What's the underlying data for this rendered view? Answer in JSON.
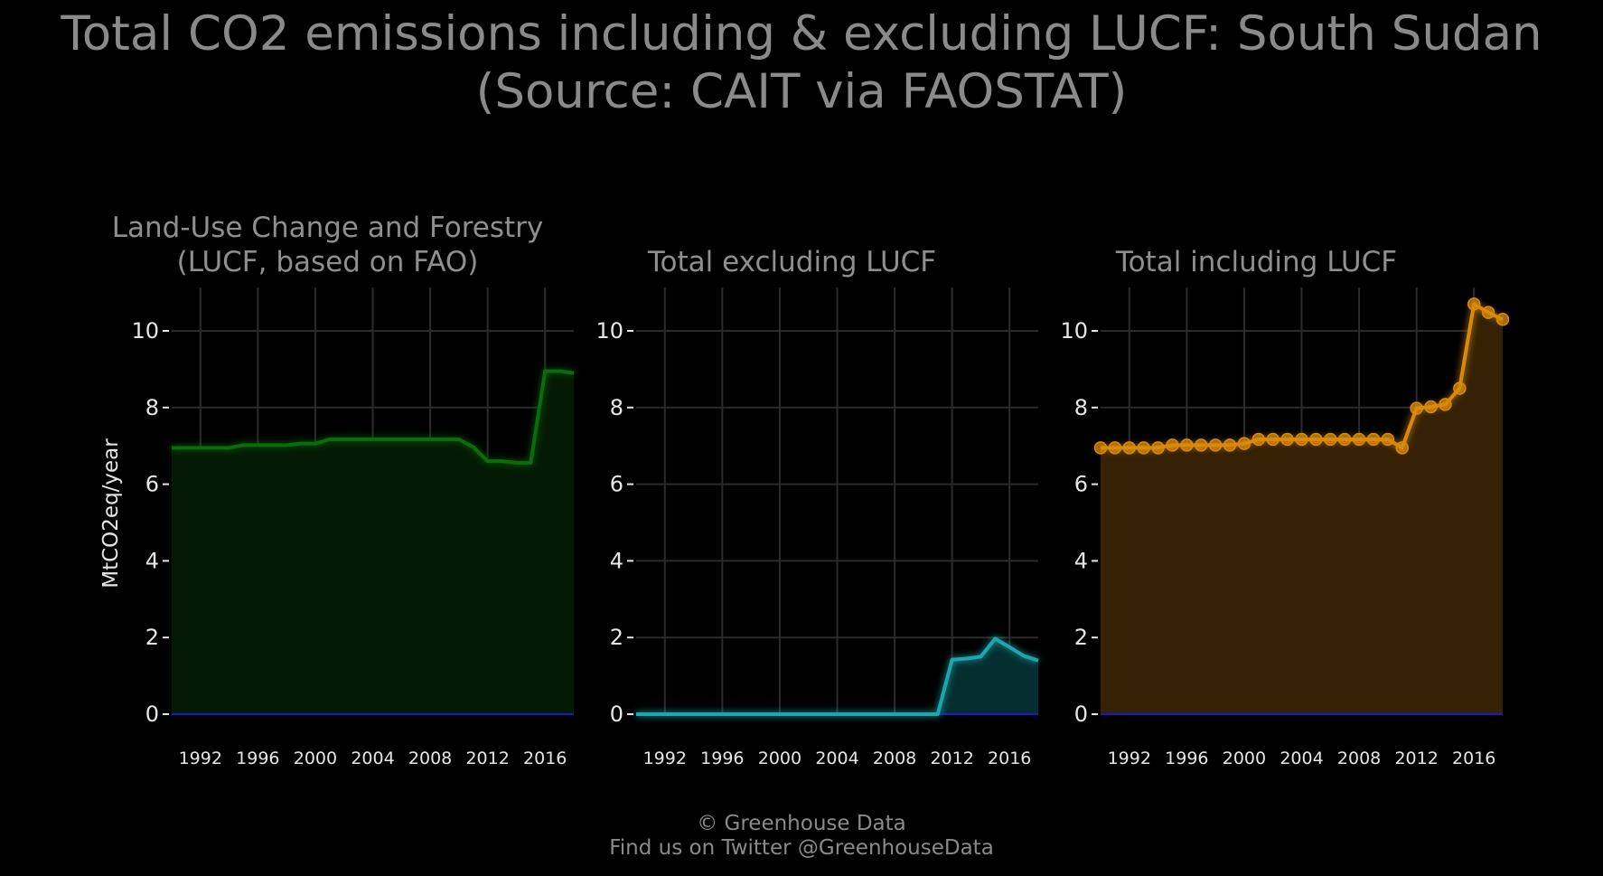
{
  "title": {
    "line1": "Total CO2 emissions including & excluding LUCF: South Sudan",
    "line2": "(Source: CAIT via FAOSTAT)"
  },
  "credits": {
    "line1": "© Greenhouse Data",
    "line2": "Find us on Twitter @GreenhouseData"
  },
  "chart_data": [
    {
      "type": "area",
      "title": [
        "Land-Use Change and Forestry",
        "(LUCF, based on FAO)"
      ],
      "ylabel": "MtCO2eq/year",
      "xlim": [
        1990,
        2018
      ],
      "ylim": [
        0,
        10
      ],
      "x_ticks": [
        "1992",
        "1996",
        "2000",
        "2004",
        "2008",
        "2012",
        "2016"
      ],
      "y_ticks": [
        "0",
        "2",
        "4",
        "6",
        "8",
        "10"
      ],
      "grid": true,
      "color": "#0b6b0b",
      "fill": "#041a04",
      "markers": false,
      "x": [
        1990,
        1991,
        1992,
        1993,
        1994,
        1995,
        1996,
        1997,
        1998,
        1999,
        2000,
        2001,
        2002,
        2003,
        2004,
        2005,
        2006,
        2007,
        2008,
        2009,
        2010,
        2011,
        2012,
        2013,
        2014,
        2015,
        2016,
        2017,
        2018
      ],
      "values": [
        6.95,
        6.95,
        6.95,
        6.95,
        6.95,
        7.02,
        7.02,
        7.02,
        7.02,
        7.06,
        7.06,
        7.17,
        7.17,
        7.17,
        7.17,
        7.17,
        7.17,
        7.17,
        7.17,
        7.17,
        7.17,
        6.97,
        6.6,
        6.6,
        6.56,
        6.56,
        8.95,
        8.95,
        8.9
      ]
    },
    {
      "type": "area",
      "title": [
        "",
        "Total excluding LUCF"
      ],
      "ylabel": "",
      "xlim": [
        1990,
        2018
      ],
      "ylim": [
        0,
        10
      ],
      "x_ticks": [
        "1992",
        "1996",
        "2000",
        "2004",
        "2008",
        "2012",
        "2016"
      ],
      "y_ticks": [
        "0",
        "2",
        "4",
        "6",
        "8",
        "10"
      ],
      "grid": true,
      "color": "#1fa6ad",
      "fill": "#052e31",
      "markers": false,
      "x": [
        1990,
        1991,
        1992,
        1993,
        1994,
        1995,
        1996,
        1997,
        1998,
        1999,
        2000,
        2001,
        2002,
        2003,
        2004,
        2005,
        2006,
        2007,
        2008,
        2009,
        2010,
        2011,
        2012,
        2013,
        2014,
        2015,
        2016,
        2017,
        2018
      ],
      "values": [
        0,
        0,
        0,
        0,
        0,
        0,
        0,
        0,
        0,
        0,
        0,
        0,
        0,
        0,
        0,
        0,
        0,
        0,
        0,
        0,
        0,
        0,
        1.42,
        1.45,
        1.5,
        1.97,
        1.75,
        1.52,
        1.4
      ]
    },
    {
      "type": "area",
      "title": [
        "",
        "Total including LUCF"
      ],
      "ylabel": "",
      "xlim": [
        1990,
        2018
      ],
      "ylim": [
        0,
        10
      ],
      "x_ticks": [
        "1992",
        "1996",
        "2000",
        "2004",
        "2008",
        "2012",
        "2016"
      ],
      "y_ticks": [
        "0",
        "2",
        "4",
        "6",
        "8",
        "10"
      ],
      "grid": true,
      "color": "#d98a0b",
      "fill": "#352103",
      "markers": true,
      "x": [
        1990,
        1991,
        1992,
        1993,
        1994,
        1995,
        1996,
        1997,
        1998,
        1999,
        2000,
        2001,
        2002,
        2003,
        2004,
        2005,
        2006,
        2007,
        2008,
        2009,
        2010,
        2011,
        2012,
        2013,
        2014,
        2015,
        2016,
        2017,
        2018
      ],
      "values": [
        6.95,
        6.95,
        6.95,
        6.95,
        6.95,
        7.02,
        7.02,
        7.02,
        7.02,
        7.02,
        7.06,
        7.17,
        7.17,
        7.17,
        7.17,
        7.17,
        7.17,
        7.17,
        7.17,
        7.17,
        7.17,
        6.95,
        7.98,
        8.02,
        8.08,
        8.5,
        10.7,
        10.48,
        10.3
      ]
    }
  ],
  "colors": {
    "background": "#000000",
    "grid": "#2b2b2b",
    "zero_line": "#1a1acc",
    "title_text": "#8a8a8a",
    "tick_text": "#e6e6e6"
  }
}
